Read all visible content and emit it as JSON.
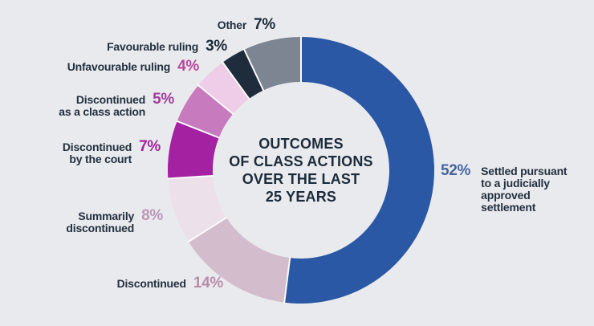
{
  "background_color": "#E9EAEE",
  "center": {
    "lines": [
      "OUTCOMES",
      "OF CLASS ACTIONS",
      "OVER THE LAST",
      "25 YEARS"
    ],
    "color": "#1C2B3A"
  },
  "chart_data": {
    "type": "pie",
    "variant": "donut",
    "title": "Outcomes of class actions over the last 25 years",
    "start_angle_deg": 0,
    "direction": "clockwise",
    "separator_color": "#FAFBFC",
    "segments": [
      {
        "key": "settled",
        "label_lines": [
          "Settled pursuant",
          "to a judicially",
          "approved",
          "settlement"
        ],
        "value": 52,
        "pct": "52%",
        "color": "#2B58A4",
        "pct_color": "#4366A3",
        "label_side": "right"
      },
      {
        "key": "discontinued",
        "label_lines": [
          "Discontinued"
        ],
        "value": 14,
        "pct": "14%",
        "color": "#D3BCCB",
        "pct_color": "#B88DA8",
        "label_side": "left"
      },
      {
        "key": "summarily-discontinued",
        "label_lines": [
          "Summarily",
          "discontinued"
        ],
        "value": 8,
        "pct": "8%",
        "color": "#ECE0EB",
        "pct_color": "#BD97B8",
        "label_side": "left"
      },
      {
        "key": "discontinued-by-the-court",
        "label_lines": [
          "Discontinued",
          "by the court"
        ],
        "value": 7,
        "pct": "7%",
        "color": "#A421A1",
        "pct_color": "#A621A3",
        "label_side": "left"
      },
      {
        "key": "discontinued-class-action",
        "label_lines": [
          "Discontinued",
          "as a class action"
        ],
        "value": 5,
        "pct": "5%",
        "color": "#C87ABE",
        "pct_color": "#A23C9C",
        "label_side": "left"
      },
      {
        "key": "unfavourable-ruling",
        "label_lines": [
          "Unfavourable ruling"
        ],
        "value": 4,
        "pct": "4%",
        "color": "#EFCCE7",
        "pct_color": "#B8479F",
        "label_side": "left"
      },
      {
        "key": "favourable-ruling",
        "label_lines": [
          "Favourable ruling"
        ],
        "value": 3,
        "pct": "3%",
        "color": "#1E2C3C",
        "pct_color": "#1C2B3A",
        "label_side": "left"
      },
      {
        "key": "other",
        "label_lines": [
          "Other"
        ],
        "value": 7,
        "pct": "7%",
        "color": "#7C8591",
        "pct_color": "#1C2B3A",
        "label_side": "left"
      }
    ]
  }
}
